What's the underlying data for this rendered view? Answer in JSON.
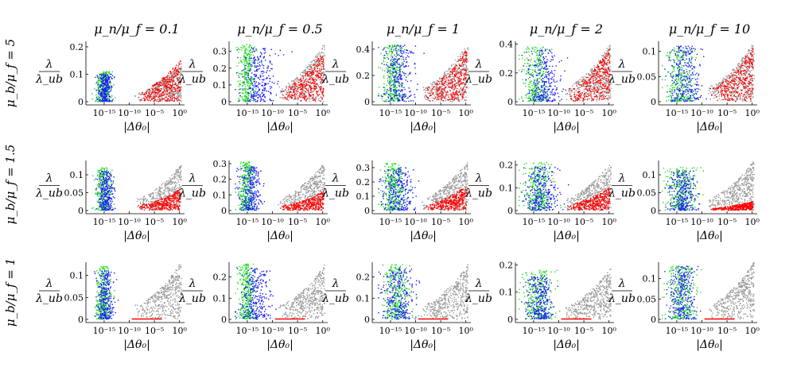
{
  "chart_data": {
    "type": "scatter",
    "layout": "3x5 grid of subplots",
    "column_titles": [
      "μ_n/μ_f = 0.1",
      "μ_n/μ_f = 0.5",
      "μ_n/μ_f = 1",
      "μ_n/μ_f = 2",
      "μ_n/μ_f = 10"
    ],
    "row_titles": [
      "μ_b/μ_f = 5",
      "μ_b/μ_f = 1.5",
      "μ_b/μ_f = 1"
    ],
    "xlabel": "|Δθ₀|",
    "ylabel_num": "λ",
    "ylabel_den": "λ_ub",
    "x_scale": "log",
    "x_tick_labels": [
      "10⁻¹⁵",
      "10⁻¹⁰",
      "10⁻⁵",
      "10⁰"
    ],
    "x_tick_exponents": [
      -15,
      -10,
      -5,
      0
    ],
    "xlim_exponent": [
      -18,
      1
    ],
    "grid": false,
    "series_colors": {
      "gray": "#9a9a9a",
      "red": "#ff0000",
      "green": "#22dd22",
      "blue": "#1a1aff"
    },
    "panels": [
      {
        "row": 0,
        "col": 0,
        "ylim": [
          0,
          0.22
        ],
        "yticks": [
          0,
          0.1,
          0.2
        ],
        "ytick_labels": [
          "0",
          "0.1",
          "0.2"
        ],
        "clusters": {
          "gray_peak": 0.14,
          "red_peak": 0.15,
          "green_x": [
            -17,
            -13.5
          ],
          "green_peak": 0.11,
          "blue_x": [
            -16.5,
            -13.5
          ],
          "blue_peak": 0.1
        }
      },
      {
        "row": 0,
        "col": 1,
        "ylim": [
          0,
          0.36
        ],
        "yticks": [
          0,
          0.1,
          0.2,
          0.3
        ],
        "ytick_labels": [
          "0",
          "0.1",
          "0.2",
          "0.3"
        ],
        "clusters": {
          "gray_peak": 0.35,
          "red_peak": 0.3,
          "green_x": [
            -17,
            -13.5
          ],
          "green_peak": 0.34,
          "blue_x": [
            -17,
            -9
          ],
          "blue_peak": 0.32
        }
      },
      {
        "row": 0,
        "col": 2,
        "ylim": [
          0,
          0.46
        ],
        "yticks": [
          0,
          0.2,
          0.4
        ],
        "ytick_labels": [
          "0",
          "0.2",
          "0.4"
        ],
        "clusters": {
          "gray_peak": 0.45,
          "red_peak": 0.4,
          "green_x": [
            -17,
            -12
          ],
          "green_peak": 0.43,
          "blue_x": [
            -17,
            -10
          ],
          "blue_peak": 0.43
        }
      },
      {
        "row": 0,
        "col": 3,
        "ylim": [
          0,
          0.42
        ],
        "yticks": [
          0,
          0.2,
          0.4
        ],
        "ytick_labels": [
          "0",
          "0.2",
          "0.4"
        ],
        "clusters": {
          "gray_peak": 0.41,
          "red_peak": 0.38,
          "green_x": [
            -17.5,
            -12
          ],
          "green_peak": 0.38,
          "blue_x": [
            -17,
            -9
          ],
          "blue_peak": 0.36
        }
      },
      {
        "row": 0,
        "col": 4,
        "ylim": [
          0,
          0.12
        ],
        "yticks": [
          0,
          0.05,
          0.1
        ],
        "ytick_labels": [
          "0",
          "0.05",
          "0.1"
        ],
        "clusters": {
          "gray_peak": 0.12,
          "red_peak": 0.11,
          "green_x": [
            -17.5,
            -11
          ],
          "green_peak": 0.11,
          "blue_x": [
            -17,
            -10
          ],
          "blue_peak": 0.11
        }
      },
      {
        "row": 1,
        "col": 0,
        "ylim": [
          0,
          0.14
        ],
        "yticks": [
          0,
          0.05,
          0.1
        ],
        "ytick_labels": [
          "0",
          "0.05",
          "0.1"
        ],
        "clusters": {
          "gray_peak": 0.13,
          "red_peak": 0.06,
          "green_x": [
            -17,
            -13.5
          ],
          "green_peak": 0.12,
          "blue_x": [
            -16.5,
            -13
          ],
          "blue_peak": 0.11
        }
      },
      {
        "row": 1,
        "col": 1,
        "ylim": [
          0,
          0.32
        ],
        "yticks": [
          0,
          0.1,
          0.2,
          0.3
        ],
        "ytick_labels": [
          "0",
          "0.1",
          "0.2",
          "0.3"
        ],
        "clusters": {
          "gray_peak": 0.31,
          "red_peak": 0.12,
          "green_x": [
            -17,
            -13.5
          ],
          "green_peak": 0.31,
          "blue_x": [
            -17,
            -12
          ],
          "blue_peak": 0.28
        }
      },
      {
        "row": 1,
        "col": 2,
        "ylim": [
          0,
          0.35
        ],
        "yticks": [
          0,
          0.1,
          0.2,
          0.3
        ],
        "ytick_labels": [
          "0",
          "0.1",
          "0.2",
          "0.3"
        ],
        "clusters": {
          "gray_peak": 0.34,
          "red_peak": 0.17,
          "green_x": [
            -17,
            -12
          ],
          "green_peak": 0.33,
          "blue_x": [
            -17,
            -10
          ],
          "blue_peak": 0.3
        }
      },
      {
        "row": 1,
        "col": 3,
        "ylim": [
          0,
          0.22
        ],
        "yticks": [
          0,
          0.1,
          0.2
        ],
        "ytick_labels": [
          "0",
          "0.1",
          "0.2"
        ],
        "clusters": {
          "gray_peak": 0.21,
          "red_peak": 0.1,
          "green_x": [
            -17.5,
            -11
          ],
          "green_peak": 0.21,
          "blue_x": [
            -17,
            -10
          ],
          "blue_peak": 0.19
        }
      },
      {
        "row": 1,
        "col": 4,
        "ylim": [
          0,
          0.14
        ],
        "yticks": [
          0,
          0.05,
          0.1
        ],
        "ytick_labels": [
          "0",
          "0.05",
          "0.1"
        ],
        "clusters": {
          "gray_peak": 0.14,
          "red_peak": 0.025,
          "green_x": [
            -17.5,
            -11
          ],
          "green_peak": 0.12,
          "blue_x": [
            -17,
            -11
          ],
          "blue_peak": 0.11
        }
      },
      {
        "row": 2,
        "col": 0,
        "ylim": [
          0,
          0.13
        ],
        "yticks": [
          0,
          0.05,
          0.1
        ],
        "ytick_labels": [
          "0",
          "0.05",
          "0.1"
        ],
        "clusters": {
          "gray_peak": 0.13,
          "red_peak": 0.001,
          "green_x": [
            -17,
            -13.5
          ],
          "green_peak": 0.12,
          "blue_x": [
            -16.5,
            -13
          ],
          "blue_peak": 0.11
        }
      },
      {
        "row": 2,
        "col": 1,
        "ylim": [
          0,
          0.27
        ],
        "yticks": [
          0,
          0.1,
          0.2
        ],
        "ytick_labels": [
          "0",
          "0.1",
          "0.2"
        ],
        "clusters": {
          "gray_peak": 0.26,
          "red_peak": 0.002,
          "green_x": [
            -17,
            -13.5
          ],
          "green_peak": 0.26,
          "blue_x": [
            -17,
            -10
          ],
          "blue_peak": 0.24
        }
      },
      {
        "row": 2,
        "col": 2,
        "ylim": [
          0,
          0.27
        ],
        "yticks": [
          0,
          0.1,
          0.2
        ],
        "ytick_labels": [
          "0",
          "0.1",
          "0.2"
        ],
        "clusters": {
          "gray_peak": 0.26,
          "red_peak": 0.002,
          "green_x": [
            -17,
            -11
          ],
          "green_peak": 0.26,
          "blue_x": [
            -17,
            -10
          ],
          "blue_peak": 0.24
        }
      },
      {
        "row": 2,
        "col": 3,
        "ylim": [
          0,
          0.21
        ],
        "yticks": [
          0,
          0.1,
          0.2
        ],
        "ytick_labels": [
          "0",
          "0.1",
          "0.2"
        ],
        "clusters": {
          "gray_peak": 0.19,
          "red_peak": 0.002,
          "green_x": [
            -17.5,
            -11
          ],
          "green_peak": 0.18,
          "blue_x": [
            -17,
            -11
          ],
          "blue_peak": 0.16
        }
      },
      {
        "row": 2,
        "col": 4,
        "ylim": [
          0,
          0.14
        ],
        "yticks": [
          0,
          0.05,
          0.1
        ],
        "ytick_labels": [
          "0",
          "0.05",
          "0.1"
        ],
        "clusters": {
          "gray_peak": 0.14,
          "red_peak": 0.001,
          "green_x": [
            -17.5,
            -11
          ],
          "green_peak": 0.13,
          "blue_x": [
            -17,
            -11
          ],
          "blue_peak": 0.13
        }
      }
    ]
  }
}
